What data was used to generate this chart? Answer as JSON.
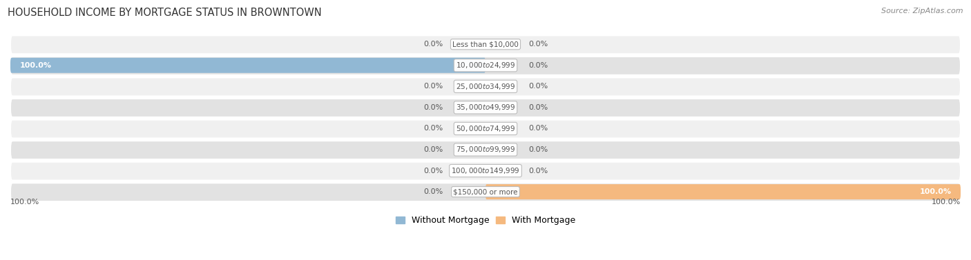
{
  "title": "HOUSEHOLD INCOME BY MORTGAGE STATUS IN BROWNTOWN",
  "source": "Source: ZipAtlas.com",
  "categories": [
    "Less than $10,000",
    "$10,000 to $24,999",
    "$25,000 to $34,999",
    "$35,000 to $49,999",
    "$50,000 to $74,999",
    "$75,000 to $99,999",
    "$100,000 to $149,999",
    "$150,000 or more"
  ],
  "without_mortgage": [
    0.0,
    100.0,
    0.0,
    0.0,
    0.0,
    0.0,
    0.0,
    0.0
  ],
  "with_mortgage": [
    0.0,
    0.0,
    0.0,
    0.0,
    0.0,
    0.0,
    0.0,
    100.0
  ],
  "without_mortgage_color": "#91b8d4",
  "with_mortgage_color": "#f5b97f",
  "row_bg_light": "#f0f0f0",
  "row_bg_dark": "#e2e2e2",
  "center_label_bg": "#ffffff",
  "center_label_border": "#cccccc",
  "label_color": "#555555",
  "title_color": "#333333",
  "source_color": "#888888",
  "legend_without_color": "#91b8d4",
  "legend_with_color": "#f5b97f",
  "figsize": [
    14.06,
    3.77
  ],
  "dpi": 100
}
